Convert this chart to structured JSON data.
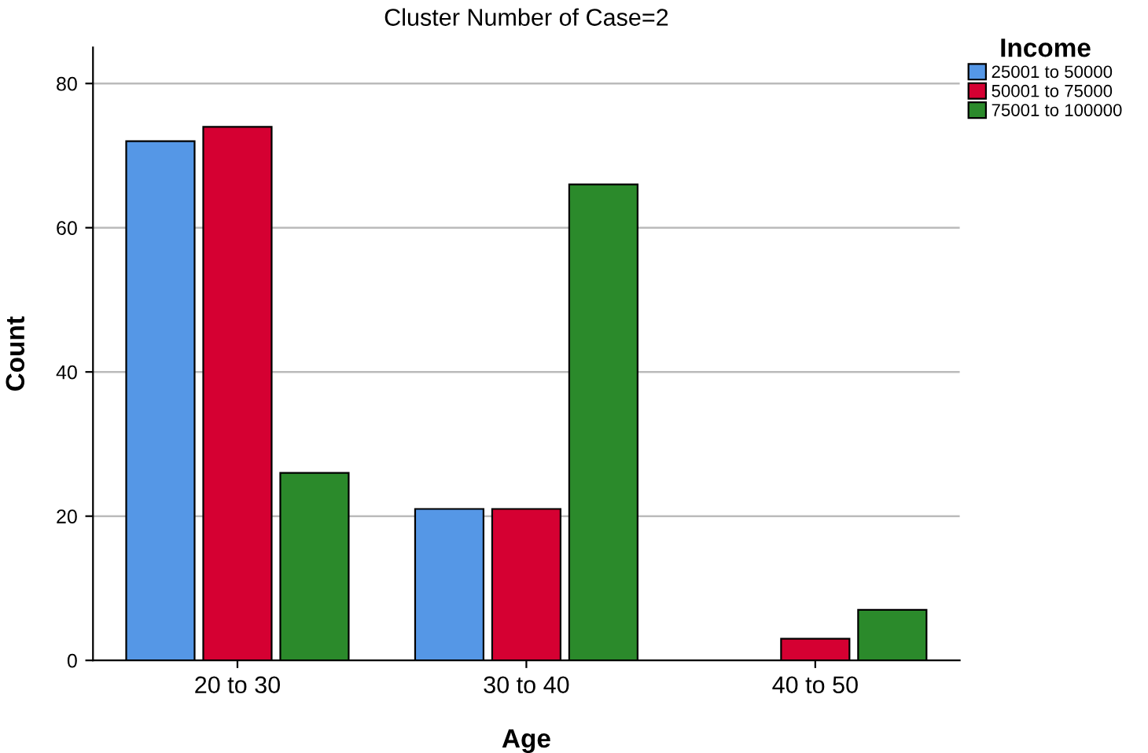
{
  "chart_data": {
    "type": "bar",
    "title": "Cluster Number of Case=2",
    "xlabel": "Age",
    "ylabel": "Count",
    "legend_title": "Income",
    "categories": [
      "20 to 30",
      "30 to 40",
      "40 to 50"
    ],
    "series": [
      {
        "name": "25001 to 50000",
        "color": "#5597e6",
        "values": [
          72,
          21,
          null
        ]
      },
      {
        "name": "50001 to 75000",
        "color": "#d50032",
        "values": [
          74,
          21,
          3
        ]
      },
      {
        "name": "75001 to 100000",
        "color": "#2b8a2b",
        "values": [
          26,
          66,
          7
        ]
      }
    ],
    "ylim": [
      0,
      85
    ],
    "yticks": [
      0,
      20,
      40,
      60,
      80
    ],
    "grid": "y",
    "legend": "top right"
  }
}
